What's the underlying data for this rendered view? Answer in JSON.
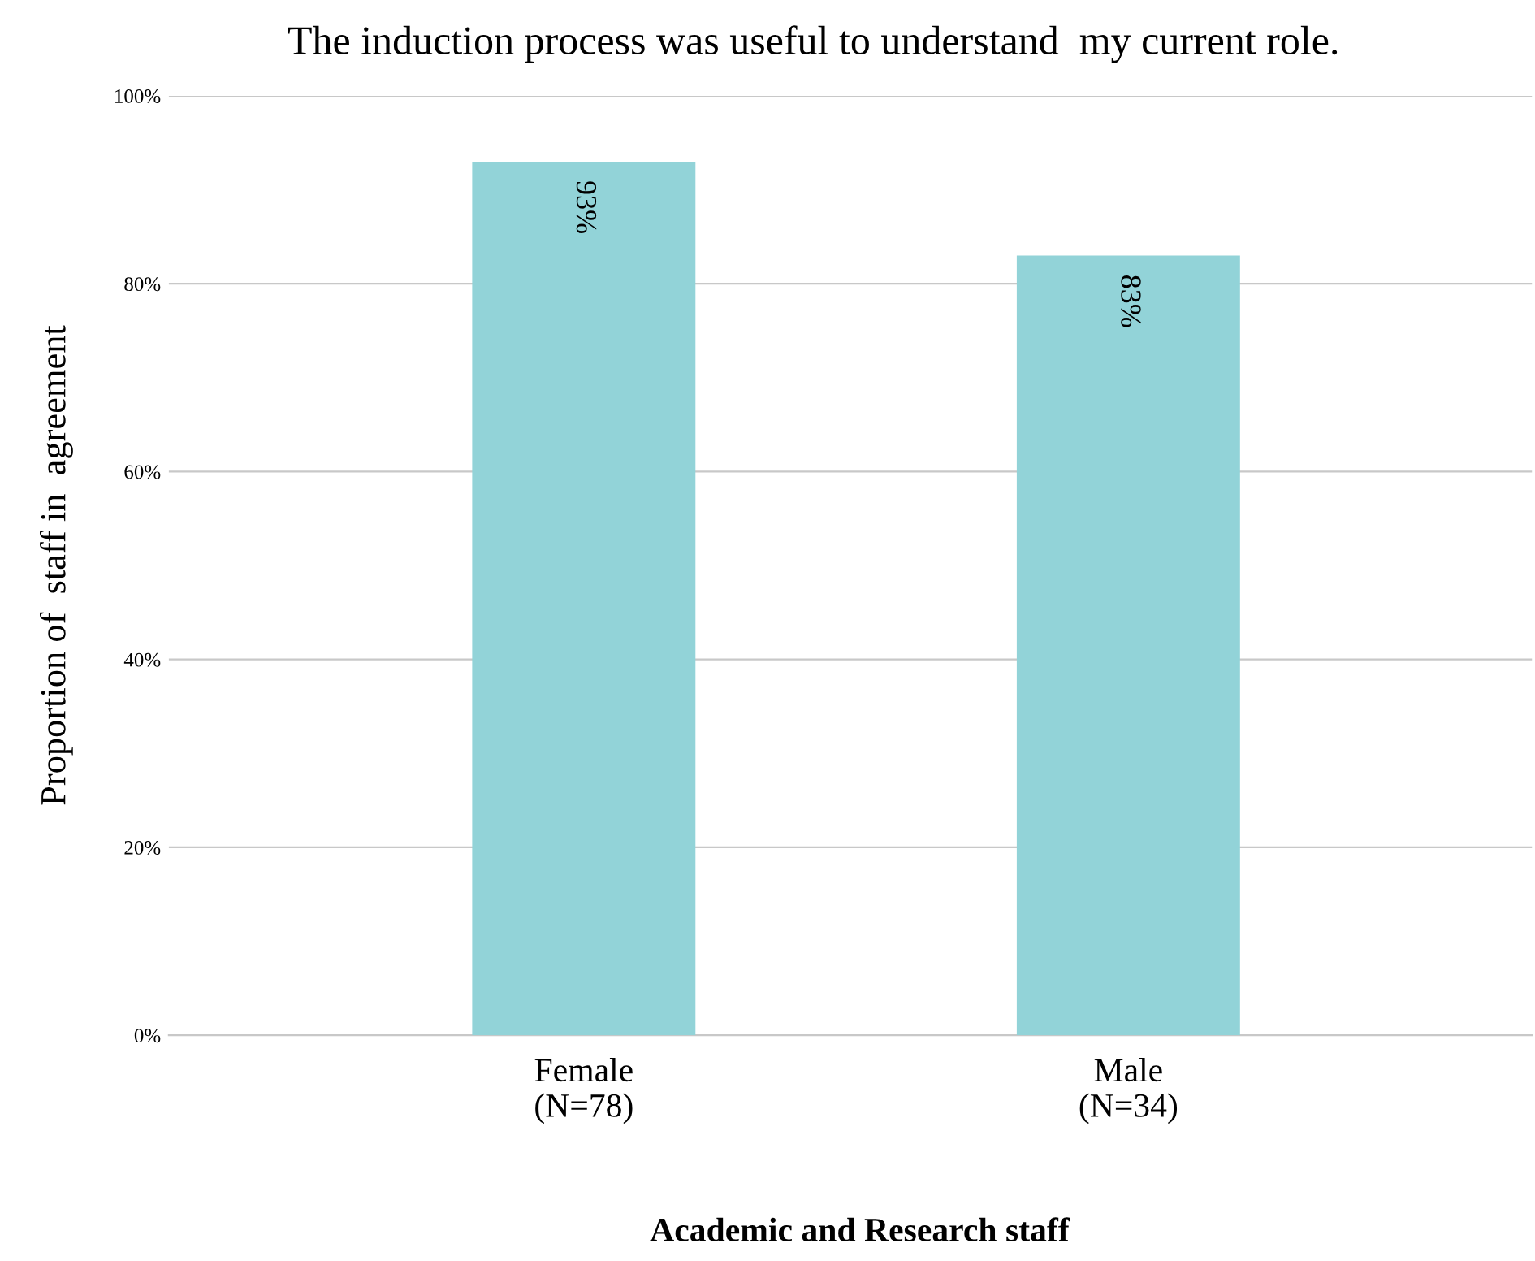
{
  "chart_data": {
    "type": "bar",
    "title": "The induction process was useful to understand  my current role.",
    "xlabel": "Academic and Research staff",
    "ylabel": "Proportion of  staff in  agreement",
    "categories": [
      "Female\n(N=78)",
      "Male\n(N=34)"
    ],
    "values": [
      93,
      83
    ],
    "value_labels": [
      "93%",
      "83%"
    ],
    "color": "#92d3d8",
    "ylim": [
      0,
      100
    ],
    "yticks": [
      {
        "value": 0,
        "label": "0%"
      },
      {
        "value": 20,
        "label": "20%"
      },
      {
        "value": 40,
        "label": "40%"
      },
      {
        "value": 60,
        "label": "60%"
      },
      {
        "value": 80,
        "label": "80%"
      },
      {
        "value": 100,
        "label": "100%"
      }
    ],
    "grid": "y",
    "legend": false
  }
}
